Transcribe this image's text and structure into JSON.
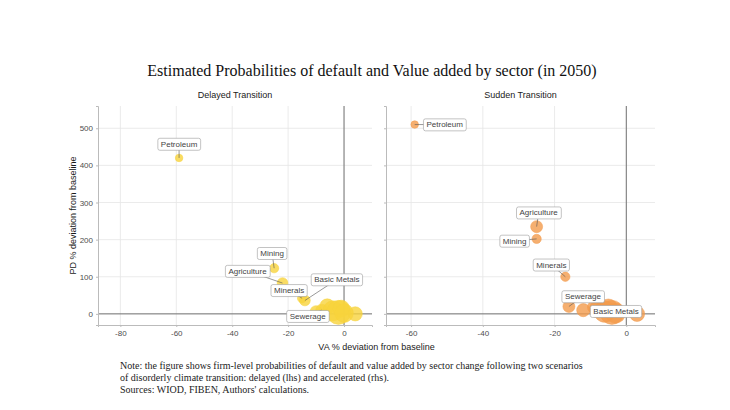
{
  "chart_data": {
    "type": "scatter",
    "title": "Estimated Probabilities of default and Value added by sector (in 2050)",
    "x_label": "VA % deviation from baseline",
    "y_label": "PD % deviation from baseline",
    "ylim": [
      -30,
      560
    ],
    "yticks": [
      0,
      100,
      200,
      300,
      400,
      500
    ],
    "grid": true,
    "hline": 0,
    "vline": 0,
    "panels": [
      {
        "subtitle": "Delayed Transition",
        "color": "#f7d33c",
        "xlim": [
          -88,
          10
        ],
        "xticks": [
          -80,
          -60,
          -40,
          -20,
          0
        ],
        "labels": [
          "Petroleum",
          "Mining",
          "Agriculture",
          "Minerals",
          "Basic Metals",
          "Sewerage",
          null,
          null,
          null,
          null,
          null,
          null,
          null
        ],
        "x": [
          -59,
          -25,
          -22,
          -15,
          -14,
          -8,
          -6,
          -4,
          -2,
          -1,
          0,
          4,
          -10
        ],
        "values": [
          420,
          123,
          83,
          42,
          36,
          10,
          20,
          8,
          4,
          14,
          2,
          0,
          6
        ],
        "sizes": [
          2,
          3,
          4,
          3,
          4,
          5,
          8,
          14,
          20,
          10,
          12,
          7,
          5
        ]
      },
      {
        "subtitle": "Sudden Transition",
        "color": "#f29b4c",
        "xlim": [
          -67,
          8
        ],
        "xticks": [
          -60,
          -40,
          -20,
          0
        ],
        "labels": [
          "Petroleum",
          "Agriculture",
          "Mining",
          "Minerals",
          "Sewerage",
          "Basic Metals",
          null,
          null,
          null,
          null,
          null,
          null,
          null
        ],
        "x": [
          -59,
          -25,
          -25,
          -17,
          -16,
          -9,
          -8,
          -6,
          -4,
          -5,
          -3,
          3,
          -12
        ],
        "values": [
          510,
          235,
          202,
          100,
          20,
          18,
          12,
          6,
          4,
          15,
          2,
          0,
          10
        ],
        "sizes": [
          2,
          5,
          3,
          3,
          5,
          6,
          10,
          16,
          20,
          12,
          14,
          8,
          6
        ]
      }
    ],
    "note": [
      "Note: the figure shows firm-level probabilities of default and value added by sector change following two scenarios",
      "of disorderly climate transition: delayed (lhs) and accelerated (rhs)."
    ],
    "sources": "Sources: WIOD, FIBEN, Authors' calculations."
  }
}
